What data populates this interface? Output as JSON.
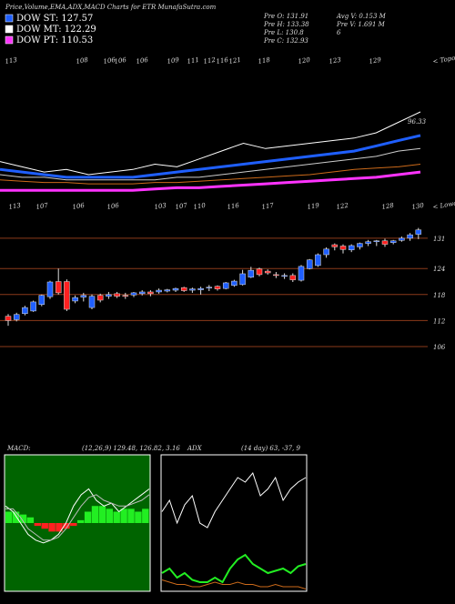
{
  "chart_data": {
    "type": "candlestick",
    "title": "Price,Volume,EMA,ADX,MACD Charts for ETR MunafaSutra.com",
    "legend": [
      {
        "name": "DOW ST: 127.57",
        "color": "#1f5fff"
      },
      {
        "name": "DOW MT: 122.29",
        "color": "#ffffff"
      },
      {
        "name": "DOW PT: 110.53",
        "color": "#ff33ff"
      }
    ],
    "info": [
      "Pre  O: 131.91",
      "Avg V: 0.153 M",
      "Pre  H: 133.38",
      "Pre  V: 1.691 M",
      "Pre  L: 130.8",
      "6",
      "Pre  C: 132.93"
    ],
    "highs_row": [
      "113",
      "108",
      "106",
      "106",
      "106",
      "109",
      "111",
      "112",
      "116",
      "121",
      "118",
      "120",
      "123",
      "129",
      "< Topo"
    ],
    "lows_row": [
      "113",
      "107",
      "106",
      "106",
      "103",
      "107",
      "110",
      "116",
      "117",
      "119",
      "122",
      "128",
      "130",
      "< Lowo"
    ],
    "ema_label": "96.33",
    "ylim": [
      102,
      135.6
    ],
    "yticks": [
      131,
      124,
      118,
      112,
      106
    ],
    "grid": true,
    "up_color": "#1f5fff",
    "down_color": "#ff2020",
    "candles": [
      [
        113.0,
        113.5,
        110.8,
        112.0
      ],
      [
        112.2,
        113.8,
        111.8,
        113.4
      ],
      [
        113.6,
        115.4,
        113.2,
        115.0
      ],
      [
        114.2,
        116.6,
        114.0,
        116.3
      ],
      [
        115.7,
        118.0,
        115.3,
        117.8
      ],
      [
        117.5,
        121.2,
        117.0,
        120.9
      ],
      [
        121.0,
        124.0,
        118.0,
        118.4
      ],
      [
        121.0,
        121.5,
        114.2,
        114.6
      ],
      [
        116.5,
        117.8,
        116.0,
        117.3
      ],
      [
        117.4,
        118.4,
        116.4,
        117.8
      ],
      [
        115.0,
        118.0,
        114.6,
        117.6
      ],
      [
        117.8,
        118.2,
        116.2,
        116.7
      ],
      [
        117.6,
        118.6,
        117.0,
        118.0
      ],
      [
        118.2,
        118.6,
        117.2,
        117.6
      ],
      [
        117.8,
        118.4,
        117.0,
        117.6
      ],
      [
        117.9,
        118.6,
        117.4,
        118.4
      ],
      [
        118.2,
        119.0,
        117.8,
        118.6
      ],
      [
        118.6,
        119.0,
        117.6,
        118.2
      ],
      [
        118.6,
        119.4,
        118.2,
        119.0
      ],
      [
        118.8,
        119.3,
        118.5,
        119.1
      ],
      [
        119.0,
        119.6,
        118.6,
        119.4
      ],
      [
        119.6,
        119.8,
        118.6,
        118.9
      ],
      [
        119.0,
        119.6,
        118.4,
        119.3
      ],
      [
        119.1,
        119.8,
        118.0,
        119.4
      ],
      [
        119.5,
        120.2,
        118.8,
        119.7
      ],
      [
        119.9,
        120.1,
        118.9,
        119.3
      ],
      [
        119.4,
        120.9,
        119.2,
        120.7
      ],
      [
        120.1,
        121.4,
        119.8,
        121.1
      ],
      [
        120.3,
        123.7,
        120.1,
        122.8
      ],
      [
        122.0,
        124.4,
        121.8,
        123.6
      ],
      [
        123.9,
        124.2,
        122.2,
        122.6
      ],
      [
        123.4,
        123.8,
        122.6,
        123.0
      ],
      [
        122.6,
        123.2,
        121.8,
        122.4
      ],
      [
        122.2,
        122.9,
        121.6,
        122.4
      ],
      [
        122.4,
        122.9,
        120.9,
        121.4
      ],
      [
        121.3,
        124.8,
        121.0,
        124.5
      ],
      [
        124.0,
        126.2,
        123.8,
        126.0
      ],
      [
        124.7,
        127.5,
        124.4,
        127.2
      ],
      [
        127.2,
        128.9,
        126.5,
        128.5
      ],
      [
        129.5,
        129.8,
        128.2,
        129.0
      ],
      [
        129.2,
        129.6,
        127.5,
        128.4
      ],
      [
        128.3,
        129.6,
        127.8,
        129.3
      ],
      [
        129.0,
        130.0,
        128.4,
        129.8
      ],
      [
        129.8,
        130.6,
        129.2,
        130.2
      ],
      [
        130.2,
        130.6,
        129.2,
        130.4
      ],
      [
        130.4,
        130.9,
        129.0,
        129.6
      ],
      [
        130.0,
        130.6,
        129.6,
        130.4
      ],
      [
        130.5,
        131.4,
        130.2,
        131.0
      ],
      [
        131.0,
        132.2,
        130.4,
        131.8
      ],
      [
        131.91,
        133.38,
        130.8,
        132.93
      ]
    ],
    "ema": {
      "ylim": [
        60,
        100
      ],
      "series": [
        {
          "color": "#ffffff",
          "width": 1,
          "values": [
            73,
            71,
            69,
            70,
            68,
            69,
            70,
            72,
            71,
            74,
            77,
            80,
            78,
            79,
            80,
            81,
            82,
            84,
            88,
            92
          ]
        },
        {
          "color": "#1f5fff",
          "width": 3,
          "values": [
            70,
            69,
            68,
            67,
            67,
            67,
            67,
            68,
            69,
            70,
            71,
            72,
            73,
            74,
            75,
            76,
            77,
            79,
            81,
            83
          ]
        },
        {
          "color": "#cccccc",
          "width": 1,
          "values": [
            68,
            67,
            67,
            66,
            66,
            66,
            66,
            66,
            67,
            67,
            68,
            69,
            70,
            71,
            72,
            73,
            74,
            75,
            77,
            78
          ]
        },
        {
          "color": "#cc6a1a",
          "width": 1,
          "values": [
            66,
            65.5,
            65,
            65,
            64.5,
            64.5,
            64.5,
            65,
            65,
            65.5,
            66,
            66.5,
            67,
            67.5,
            68,
            69,
            70,
            70.5,
            71,
            72
          ]
        },
        {
          "color": "#ff33ff",
          "width": 3,
          "values": [
            62,
            62,
            62,
            62,
            62,
            62,
            62,
            62.5,
            63,
            63,
            63.5,
            64,
            64.5,
            65,
            65.5,
            66,
            66.5,
            67,
            68,
            69
          ]
        }
      ]
    },
    "macd": {
      "label": "MACD:",
      "params": "(12,26,9) 129.48, 126.82, 3.16",
      "ylim": [
        -12,
        12
      ],
      "hist": [
        2,
        2,
        1.5,
        1,
        -0.5,
        -1,
        -1.5,
        -1.5,
        -1,
        -0.5,
        0.5,
        2,
        3,
        3,
        2.5,
        2,
        2.5,
        2.5,
        2,
        2.5
      ],
      "hist_up": "#22ee22",
      "hist_down": "#ff2020",
      "series": [
        {
          "color": "#ffffff",
          "values": [
            3,
            2,
            0,
            -2,
            -3,
            -3.5,
            -3,
            -2,
            0,
            3,
            5,
            6,
            4,
            3,
            3.5,
            2,
            3,
            4,
            5,
            6
          ]
        },
        {
          "color": "#bbbbbb",
          "values": [
            2.5,
            2.5,
            1,
            -1,
            -2,
            -3,
            -3,
            -2.5,
            -1,
            1,
            3,
            4.5,
            5,
            4,
            3.5,
            3,
            3,
            3.5,
            4,
            5
          ]
        }
      ]
    },
    "adx": {
      "label": "ADX",
      "params": "(14 day) 63, -37, 9",
      "ylim": [
        0,
        60
      ],
      "series": [
        {
          "color": "#ffffff",
          "values": [
            35,
            40,
            30,
            38,
            42,
            30,
            28,
            35,
            40,
            45,
            50,
            48,
            52,
            42,
            45,
            50,
            40,
            45,
            48,
            50
          ]
        },
        {
          "color": "#22ee22",
          "values": [
            8,
            10,
            6,
            8,
            5,
            4,
            4,
            6,
            4,
            10,
            14,
            16,
            12,
            10,
            8,
            9,
            10,
            8,
            11,
            12
          ]
        },
        {
          "color": "#cc6a1a",
          "values": [
            5,
            4,
            3,
            3,
            2,
            2,
            3,
            4,
            3,
            3,
            4,
            3,
            3,
            2,
            2,
            3,
            2,
            2,
            2,
            1
          ]
        }
      ]
    }
  }
}
